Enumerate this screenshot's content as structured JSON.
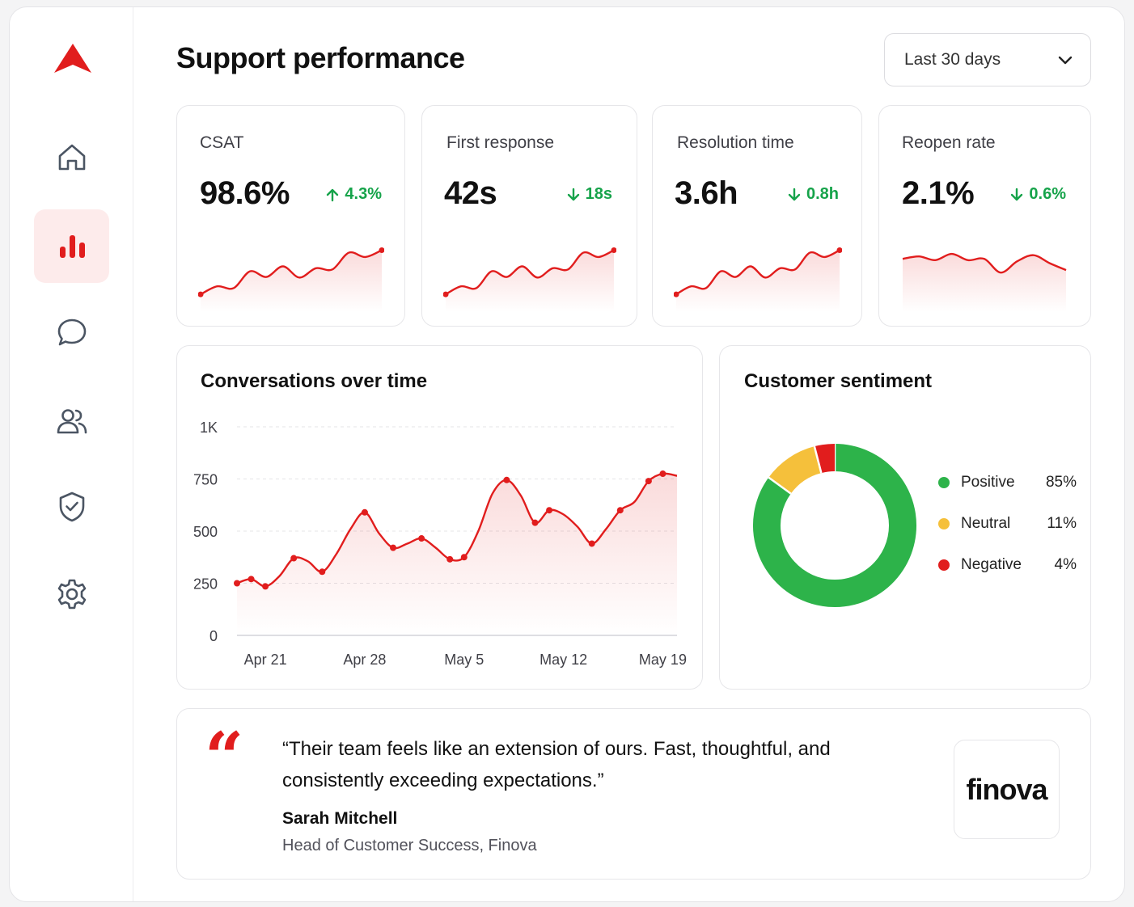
{
  "colors": {
    "accent": "#e11d1d",
    "positive_delta": "#16a34a",
    "sentiment_positive": "#2db34a",
    "sentiment_neutral": "#f5c03b",
    "sentiment_negative": "#e11d1d"
  },
  "sidebar": {
    "logo": "triangle-logo",
    "items": [
      {
        "name": "home",
        "icon": "home-icon",
        "active": false
      },
      {
        "name": "analytics",
        "icon": "bar-chart-icon",
        "active": true
      },
      {
        "name": "messages",
        "icon": "chat-bubble-icon",
        "active": false
      },
      {
        "name": "users",
        "icon": "users-icon",
        "active": false
      },
      {
        "name": "security",
        "icon": "shield-check-icon",
        "active": false
      },
      {
        "name": "settings",
        "icon": "gear-icon",
        "active": false
      }
    ]
  },
  "header": {
    "title": "Support performance",
    "date_range": "Last 30 days"
  },
  "kpis": [
    {
      "label": "CSAT",
      "value": "98.6%",
      "delta": "4.3%",
      "direction": "up",
      "trend": [
        0.05,
        0.18,
        0.15,
        0.42,
        0.33,
        0.5,
        0.32,
        0.47,
        0.45,
        0.72,
        0.65,
        0.76
      ]
    },
    {
      "label": "First response",
      "value": "42s",
      "delta": "18s",
      "direction": "down",
      "trend": [
        0.05,
        0.18,
        0.15,
        0.42,
        0.33,
        0.5,
        0.32,
        0.47,
        0.45,
        0.72,
        0.65,
        0.76
      ]
    },
    {
      "label": "Resolution time",
      "value": "3.6h",
      "delta": "0.8h",
      "direction": "down",
      "trend": [
        0.05,
        0.18,
        0.15,
        0.42,
        0.33,
        0.5,
        0.32,
        0.47,
        0.45,
        0.72,
        0.65,
        0.76
      ]
    },
    {
      "label": "Reopen rate",
      "value": "2.1%",
      "delta": "0.6%",
      "direction": "down",
      "trend": [
        0.62,
        0.66,
        0.6,
        0.7,
        0.6,
        0.62,
        0.4,
        0.58,
        0.68,
        0.55,
        0.44
      ]
    }
  ],
  "conversations": {
    "title": "Conversations over time"
  },
  "sentiment": {
    "title": "Customer sentiment"
  },
  "testimonial": {
    "quote_mark": "“",
    "text": "“Their team feels like an extension of ours. Fast, thoughtful, and consistently exceeding expectations.”",
    "author": "Sarah Mitchell",
    "role": "Head of Customer Success, Finova",
    "brand": "finova"
  },
  "chart_data": [
    {
      "type": "line",
      "title": "Conversations over time",
      "x": [
        "Apr 19",
        "Apr 20",
        "Apr 21",
        "Apr 22",
        "Apr 23",
        "Apr 24",
        "Apr 25",
        "Apr 26",
        "Apr 27",
        "Apr 28",
        "Apr 29",
        "Apr 30",
        "May 1",
        "May 2",
        "May 3",
        "May 4",
        "May 5",
        "May 6",
        "May 7",
        "May 8",
        "May 9",
        "May 10",
        "May 11",
        "May 12",
        "May 13",
        "May 14",
        "May 15",
        "May 16",
        "May 17",
        "May 18",
        "May 19",
        "May 20"
      ],
      "y": [
        250,
        270,
        235,
        285,
        370,
        355,
        305,
        390,
        510,
        590,
        490,
        420,
        440,
        465,
        420,
        365,
        375,
        500,
        680,
        745,
        670,
        540,
        600,
        580,
        520,
        440,
        510,
        600,
        640,
        740,
        775,
        765
      ],
      "marked_points": [
        0,
        1,
        2,
        4,
        6,
        9,
        11,
        13,
        15,
        16,
        19,
        21,
        22,
        25,
        27,
        29,
        30
      ],
      "x_ticks": [
        "Apr 21",
        "Apr 28",
        "May 5",
        "May 12",
        "May 19"
      ],
      "x_tick_index": [
        2,
        9,
        16,
        23,
        30
      ],
      "y_ticks": [
        "0",
        "250",
        "500",
        "750",
        "1K"
      ],
      "y_tick_values": [
        0,
        250,
        500,
        750,
        1000
      ],
      "ylim": [
        0,
        1000
      ],
      "grid": true
    },
    {
      "type": "pie",
      "title": "Customer sentiment",
      "slices": [
        {
          "name": "Positive",
          "value": 85,
          "label": "85%"
        },
        {
          "name": "Neutral",
          "value": 11,
          "label": "11%"
        },
        {
          "name": "Negative",
          "value": 4,
          "label": "4%"
        }
      ],
      "legend": "right"
    }
  ]
}
